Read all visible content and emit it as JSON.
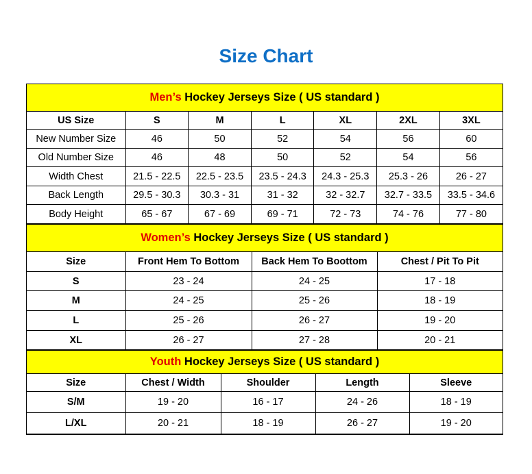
{
  "title": "Size Chart",
  "men": {
    "lead": "Men’s",
    "heading": " Hockey Jerseys Size ( US standard )",
    "headers": [
      "US Size",
      "S",
      "M",
      "L",
      "XL",
      "2XL",
      "3XL"
    ],
    "rows": [
      [
        "New Number Size",
        "46",
        "50",
        "52",
        "54",
        "56",
        "60"
      ],
      [
        "Old Number Size",
        "46",
        "48",
        "50",
        "52",
        "54",
        "56"
      ],
      [
        "Width Chest",
        "21.5 - 22.5",
        "22.5 - 23.5",
        "23.5 - 24.3",
        "24.3 - 25.3",
        "25.3 - 26",
        "26 - 27"
      ],
      [
        "Back Length",
        "29.5 - 30.3",
        "30.3 - 31",
        "31 - 32",
        "32 - 32.7",
        "32.7 - 33.5",
        "33.5 - 34.6"
      ],
      [
        "Body Height",
        "65 - 67",
        "67 - 69",
        "69 - 71",
        "72 - 73",
        "74 - 76",
        "77 - 80"
      ]
    ]
  },
  "women": {
    "lead": "Women’s",
    "heading": " Hockey Jerseys Size ( US standard )",
    "headers": [
      "Size",
      "Front Hem To Bottom",
      "Back Hem To Boottom",
      "Chest / Pit To Pit"
    ],
    "rows": [
      [
        "S",
        "23 - 24",
        "24 - 25",
        "17 - 18"
      ],
      [
        "M",
        "24 - 25",
        "25 - 26",
        "18 - 19"
      ],
      [
        "L",
        "25 - 26",
        "26 - 27",
        "19 - 20"
      ],
      [
        "XL",
        "26 - 27",
        "27 - 28",
        "20 - 21"
      ]
    ]
  },
  "youth": {
    "lead": "Youth",
    "heading": " Hockey Jerseys Size ( US standard )",
    "headers": [
      "Size",
      "Chest / Width",
      "Shoulder",
      "Length",
      "Sleeve"
    ],
    "rows": [
      [
        "S/M",
        "19 - 20",
        "16 - 17",
        "24 - 26",
        "18 - 19"
      ],
      [
        "L/XL",
        "20 - 21",
        "18 - 19",
        "26 - 27",
        "19 - 20"
      ]
    ]
  },
  "colors": {
    "title": "#0f6fc6",
    "section_bg": "#ffff00",
    "lead": "#e00000"
  }
}
